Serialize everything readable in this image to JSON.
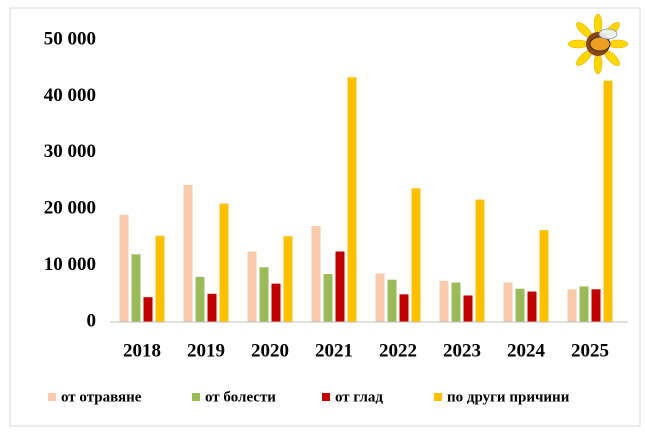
{
  "chart_data": {
    "type": "bar",
    "categories": [
      "2018",
      "2019",
      "2020",
      "2021",
      "2022",
      "2023",
      "2024",
      "2025"
    ],
    "series": [
      {
        "name": "от отравяне",
        "color": "#f8cbad",
        "values": [
          19000,
          24300,
          12500,
          17000,
          8600,
          7300,
          7000,
          5800
        ]
      },
      {
        "name": "от болести",
        "color": "#9bbb59",
        "values": [
          12000,
          8000,
          9700,
          8500,
          7500,
          7000,
          5900,
          6300
        ]
      },
      {
        "name": "от глад",
        "color": "#c00000",
        "values": [
          4400,
          5000,
          6800,
          12500,
          4900,
          4700,
          5400,
          5800
        ]
      },
      {
        "name": "по други причини",
        "color": "#ffc000",
        "values": [
          15300,
          21000,
          15200,
          43400,
          23700,
          21700,
          16300,
          42800
        ]
      }
    ],
    "ylim": [
      0,
      50000
    ],
    "yticks": [
      0,
      {
        "value": 10000,
        "label": "10 000"
      },
      {
        "value": 20000,
        "label": "20 000"
      },
      {
        "value": 30000,
        "label": "30 000"
      },
      {
        "value": 40000,
        "label": "40 000"
      },
      {
        "value": 50000,
        "label": "50 000"
      }
    ],
    "grid": false,
    "legend": "bottom"
  }
}
